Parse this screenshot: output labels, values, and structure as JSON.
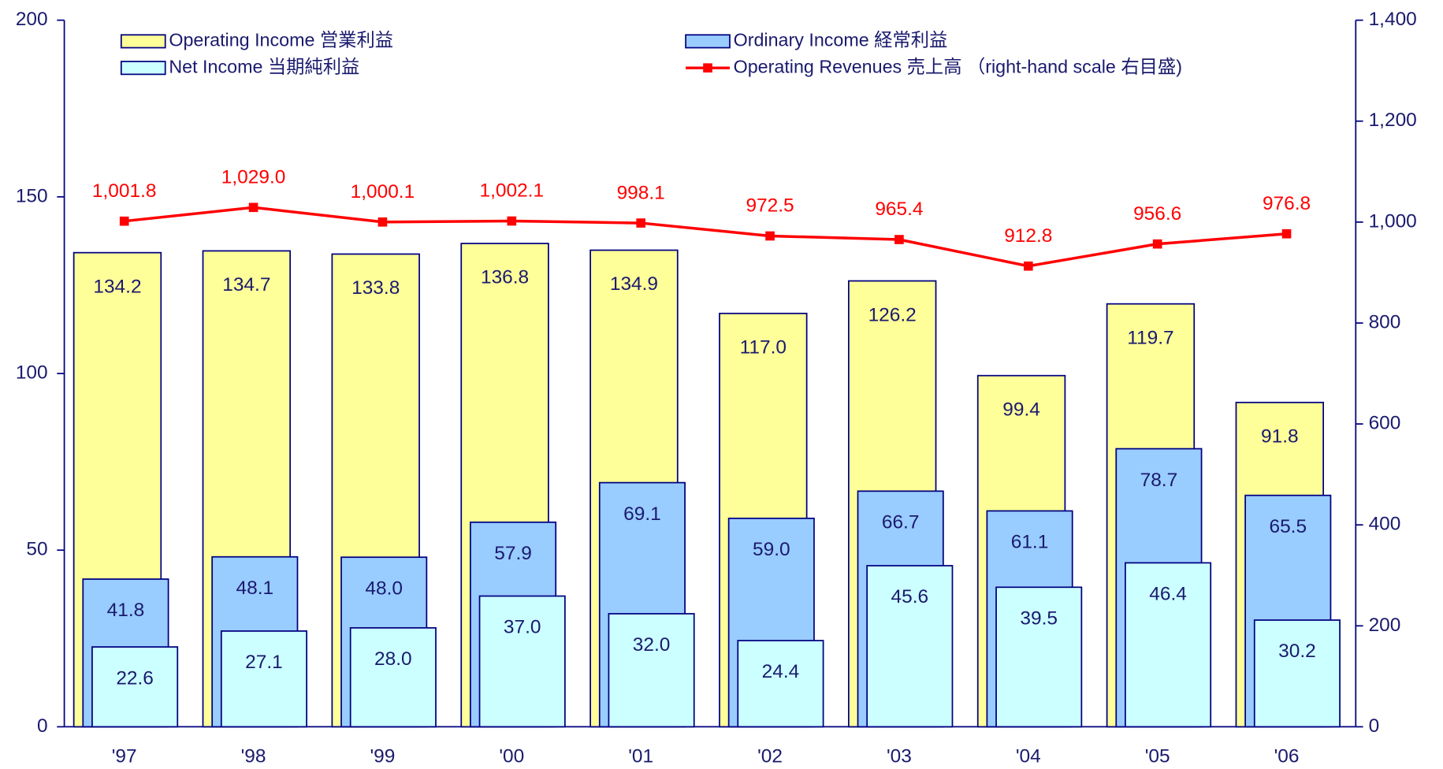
{
  "chart_data": {
    "type": "bar",
    "categories": [
      "'97",
      "'98",
      "'99",
      "'00",
      "'01",
      "'02",
      "'03",
      "'04",
      "'05",
      "'06"
    ],
    "series": [
      {
        "name": "Operating Income  営業利益",
        "color": "#ffff99",
        "values": [
          134.2,
          134.7,
          133.8,
          136.8,
          134.9,
          117.0,
          126.2,
          99.4,
          119.7,
          91.8
        ],
        "value_labels": [
          "134.2",
          "134.7",
          "133.8",
          "136.8",
          "134.9",
          "117.0",
          "126.2",
          "99.4",
          "119.7",
          "91.8"
        ]
      },
      {
        "name": "Ordinary Income  経常利益",
        "color": "#99ccff",
        "values": [
          41.8,
          48.1,
          48.0,
          57.9,
          69.1,
          59.0,
          66.7,
          61.1,
          78.7,
          65.5
        ],
        "value_labels": [
          "41.8",
          "48.1",
          "48.0",
          "57.9",
          "69.1",
          "59.0",
          "66.7",
          "61.1",
          "78.7",
          "65.5"
        ]
      },
      {
        "name": "Net Income  当期純利益",
        "color": "#ccffff",
        "values": [
          22.6,
          27.1,
          28.0,
          37.0,
          32.0,
          24.4,
          45.6,
          39.5,
          46.4,
          30.2
        ],
        "value_labels": [
          "22.6",
          "27.1",
          "28.0",
          "37.0",
          "32.0",
          "24.4",
          "45.6",
          "39.5",
          "46.4",
          "30.2"
        ]
      },
      {
        "name": "Operating Revenues  売上高 （right-hand scale  右目盛)",
        "color": "#ff0000",
        "type": "line",
        "axis": "y2",
        "values": [
          1001.8,
          1029.0,
          1000.1,
          1002.1,
          998.1,
          972.5,
          965.4,
          912.8,
          956.6,
          976.8
        ],
        "value_labels": [
          "1,001.8",
          "1,029.0",
          "1,000.1",
          "1,002.1",
          "998.1",
          "972.5",
          "965.4",
          "912.8",
          "956.6",
          "976.8"
        ]
      }
    ],
    "ylim": [
      0,
      200
    ],
    "yticks": [
      0,
      50,
      100,
      150,
      200
    ],
    "y2lim": [
      0,
      1400
    ],
    "y2ticks": [
      0,
      200,
      400,
      600,
      800,
      {
        "value": 1000,
        "label": "1,000"
      },
      {
        "value": 1200,
        "label": "1,200"
      },
      {
        "value": 1400,
        "label": "1,400"
      }
    ]
  }
}
